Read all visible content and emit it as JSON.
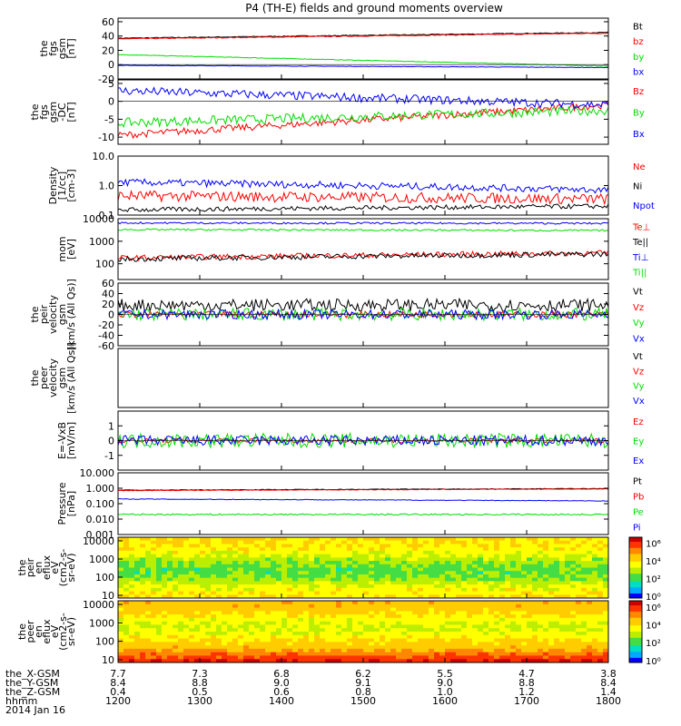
{
  "title": "P4 (TH-E) fields and ground moments overview",
  "chart_data": {
    "type": "line",
    "x_range": [
      "1200",
      "1800"
    ],
    "panels": [
      {
        "id": "fgs_gsm",
        "ylabel": [
          "the",
          "fgs",
          "gsm",
          "[nT]"
        ],
        "scale": "linear",
        "ylim": [
          -20,
          65
        ],
        "ticks": [
          "60",
          "40",
          "20",
          "0",
          "-20"
        ],
        "series": [
          {
            "name": "Bt",
            "color": "#000000",
            "start": 37,
            "end": 45,
            "noise": 0.6
          },
          {
            "name": "bz",
            "color": "#ff0000",
            "start": 36,
            "end": 44,
            "noise": 0.6
          },
          {
            "name": "by",
            "color": "#00dd00",
            "start": 14,
            "end": -2,
            "noise": 0.4
          },
          {
            "name": "bx",
            "color": "#0000ff",
            "start": -1,
            "end": -4,
            "noise": 0.3
          }
        ]
      },
      {
        "id": "fgs_gsm_dc",
        "ylabel": [
          "the",
          "fgs",
          "gsm",
          "-DC",
          "[nT]"
        ],
        "scale": "linear",
        "ylim": [
          -12,
          6
        ],
        "ticks": [
          "5",
          "0",
          "-5",
          "-10"
        ],
        "series": [
          {
            "name": "Bz",
            "color": "#ff0000",
            "start": -9.5,
            "end": -1,
            "noise": 1.0
          },
          {
            "name": "By",
            "color": "#00dd00",
            "start": -6,
            "end": -2.5,
            "noise": 1.3
          },
          {
            "name": "Bx",
            "color": "#0000ff",
            "start": 3,
            "end": -1,
            "noise": 1.2
          }
        ]
      },
      {
        "id": "density",
        "ylabel": [
          "Density",
          "[1/cc]",
          "[cm-3]"
        ],
        "scale": "log",
        "ylim": [
          0.1,
          10
        ],
        "ticks": [
          "10.0",
          "1.0",
          "0.1"
        ],
        "series": [
          {
            "name": "Ne",
            "color": "#ff0000",
            "start": 0.45,
            "end": 0.35,
            "noise": 0.18
          },
          {
            "name": "Ni",
            "color": "#000000",
            "start": 0.15,
            "end": 0.2,
            "noise": 0.08
          },
          {
            "name": "Npot",
            "color": "#0000ff",
            "start": 1.3,
            "end": 0.7,
            "noise": 0.12
          }
        ]
      },
      {
        "id": "temp",
        "ylabel": [
          "mom",
          "[eV]"
        ],
        "scale": "log",
        "ylim": [
          20,
          10000
        ],
        "ticks": [
          "10000",
          "1000",
          "100"
        ],
        "series": [
          {
            "name": "Te⊥",
            "color": "#ff0000",
            "start": 180,
            "end": 300,
            "noise": 0.12
          },
          {
            "name": "Te||",
            "color": "#000000",
            "start": 160,
            "end": 270,
            "noise": 0.12
          },
          {
            "name": "Ti⊥",
            "color": "#0000ff",
            "start": 6500,
            "end": 6200,
            "noise": 0.04
          },
          {
            "name": "Ti||",
            "color": "#00dd00",
            "start": 3300,
            "end": 3000,
            "noise": 0.04
          }
        ]
      },
      {
        "id": "peir_velocity",
        "ylabel": [
          "the",
          "peir",
          "velocity",
          "gsm",
          "[km/s (All Qs)]"
        ],
        "scale": "linear",
        "ylim": [
          -60,
          60
        ],
        "ticks": [
          "60",
          "40",
          "20",
          "0",
          "-20",
          "-40",
          "-60"
        ],
        "series": [
          {
            "name": "Vt",
            "color": "#000000",
            "start": 18,
            "end": 18,
            "noise": 12
          },
          {
            "name": "Vz",
            "color": "#ff0000",
            "start": 0,
            "end": 0,
            "noise": 6
          },
          {
            "name": "Vy",
            "color": "#00dd00",
            "start": 0,
            "end": 0,
            "noise": 12
          },
          {
            "name": "Vx",
            "color": "#0000ff",
            "start": 0,
            "end": 0,
            "noise": 9
          }
        ]
      },
      {
        "id": "peer_velocity",
        "ylabel": [
          "the",
          "peer",
          "velocity",
          "gsm",
          "[km/s (All Qs)]"
        ],
        "scale": "linear",
        "ylim": [
          -60,
          60
        ],
        "ticks": [],
        "series": [
          {
            "name": "Vt",
            "color": "#000000"
          },
          {
            "name": "Vz",
            "color": "#ff0000"
          },
          {
            "name": "Vy",
            "color": "#00dd00"
          },
          {
            "name": "Vx",
            "color": "#0000ff"
          }
        ]
      },
      {
        "id": "efield",
        "ylabel": [
          "E=-VxB",
          "[mV/m]"
        ],
        "scale": "linear",
        "ylim": [
          -2,
          2
        ],
        "ticks": [
          "1",
          "0",
          "-1"
        ],
        "series": [
          {
            "name": "Ez",
            "color": "#ff0000",
            "start": 0,
            "end": 0,
            "noise": 0.15
          },
          {
            "name": "Ey",
            "color": "#00dd00",
            "start": 0,
            "end": 0,
            "noise": 0.5
          },
          {
            "name": "Ex",
            "color": "#0000ff",
            "start": 0,
            "end": 0,
            "noise": 0.35
          }
        ]
      },
      {
        "id": "pressure",
        "ylabel": [
          "Pressure",
          "[nPa]"
        ],
        "scale": "log",
        "ylim": [
          0.001,
          10
        ],
        "ticks": [
          "10.000",
          "1.000",
          "0.100",
          "0.010",
          "0.001"
        ],
        "series": [
          {
            "name": "Pt",
            "color": "#000000",
            "start": 0.75,
            "end": 0.95,
            "noise": 0.02
          },
          {
            "name": "Pb",
            "color": "#ff0000",
            "start": 0.7,
            "end": 0.9,
            "noise": 0.02
          },
          {
            "name": "Pe",
            "color": "#00dd00",
            "start": 0.02,
            "end": 0.02,
            "noise": 0.05
          },
          {
            "name": "Pi",
            "color": "#0000ff",
            "start": 0.2,
            "end": 0.15,
            "noise": 0.02
          }
        ]
      }
    ],
    "spectrograms": [
      {
        "id": "peir_en_eflux",
        "ylabel": [
          "the",
          "peir",
          "en",
          "eflux",
          "eV",
          "(cm2-s-",
          "sr-eV)"
        ],
        "ticks": [
          "10000",
          "1000",
          "100",
          "10"
        ],
        "colorbar_ticks": [
          "10⁶",
          "10⁴",
          "10²",
          "10⁰"
        ]
      },
      {
        "id": "peer_en_eflux",
        "ylabel": [
          "the",
          "peer",
          "en",
          "eflux",
          "eV",
          "(cm2-s-",
          "sr-eV)"
        ],
        "ticks": [
          "10000",
          "1000",
          "100",
          "10"
        ],
        "colorbar_ticks": [
          "10⁶",
          "10⁴",
          "10²",
          "10⁰"
        ]
      }
    ],
    "orbit_rows": [
      {
        "label": "the_X-GSM",
        "values": [
          "7.7",
          "7.3",
          "6.8",
          "6.2",
          "5.5",
          "4.7",
          "3.8"
        ]
      },
      {
        "label": "the_Y-GSM",
        "values": [
          "8.4",
          "8.8",
          "9.0",
          "9.1",
          "9.0",
          "8.8",
          "8.4"
        ]
      },
      {
        "label": "the_Z-GSM",
        "values": [
          "0.4",
          "0.5",
          "0.6",
          "0.8",
          "1.0",
          "1.2",
          "1.4"
        ]
      },
      {
        "label": "hhmm",
        "values": [
          "1200",
          "1300",
          "1400",
          "1500",
          "1600",
          "1700",
          "1800"
        ]
      }
    ],
    "date": "2014 Jan 16"
  }
}
